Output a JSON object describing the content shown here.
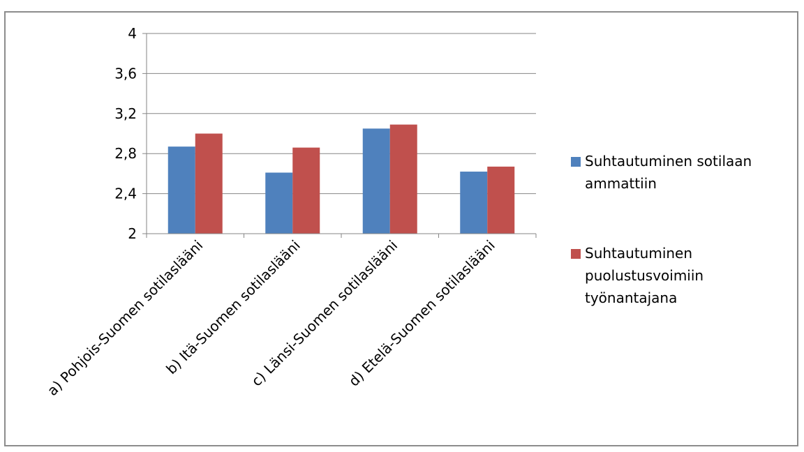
{
  "chart_data": {
    "type": "bar",
    "title": "",
    "xlabel": "",
    "ylabel": "",
    "categories": [
      "a) Pohjois-Suomen sotilaslääni",
      "b) Itä-Suomen sotilaslääni",
      "c) Länsi-Suomen sotilaslääni",
      "d) Etelä-Suomen sotilaslääni"
    ],
    "series": [
      {
        "name": "Suhtautuminen sotilaan ammattiin",
        "legend_lines": [
          "Suhtautuminen sotilaan",
          "ammattiin"
        ],
        "color": "#4f81bd",
        "values": [
          2.87,
          2.61,
          3.05,
          2.62
        ]
      },
      {
        "name": "Suhtautuminen puolustusvoimiin työnantajana",
        "legend_lines": [
          "Suhtautuminen",
          "puolustusvoimiin",
          "työnantajana"
        ],
        "color": "#c0504d",
        "values": [
          3.0,
          2.86,
          3.09,
          2.67
        ]
      }
    ],
    "ylim": [
      2,
      4
    ],
    "yticks": [
      "2",
      "2,4",
      "2,8",
      "3,2",
      "3,6",
      "4"
    ],
    "ytick_values": [
      2,
      2.4,
      2.8,
      3.2,
      3.6,
      4
    ],
    "grid": true,
    "legend_position": "right"
  }
}
